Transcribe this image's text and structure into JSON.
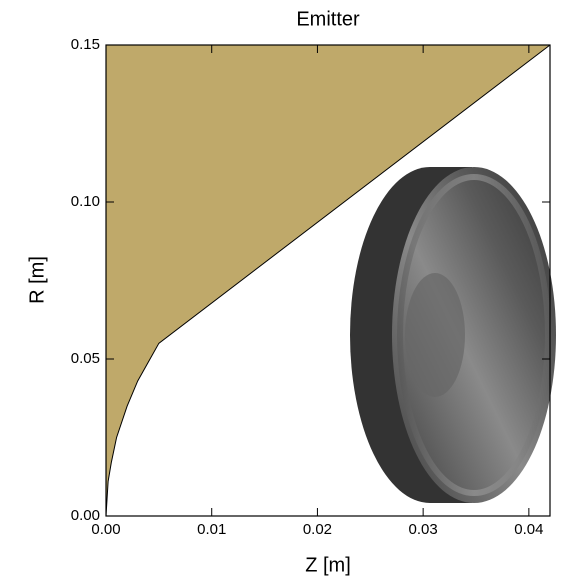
{
  "chart_data": {
    "type": "area",
    "title": "Emitter",
    "x_label": "Z [m]",
    "y_label": "R [m]",
    "x": [
      0,
      0.0002,
      0.0005,
      0.001,
      0.002,
      0.003,
      0.004,
      0.005,
      0.042
    ],
    "values": [
      0,
      0.011,
      0.017,
      0.025,
      0.035,
      0.043,
      0.049,
      0.055,
      0.15
    ],
    "color": "#bfa96a",
    "xlim": [
      0,
      0.042
    ],
    "xticks": [
      {
        "value": 0,
        "label": "0.00"
      },
      0.01,
      0.02,
      0.03,
      0.04
    ],
    "ylim": [
      0,
      0.15
    ],
    "yticks": [
      {
        "value": 0,
        "label": "0.00"
      },
      0.05,
      {
        "value": 0.1,
        "label": "0.10"
      },
      0.15
    ]
  }
}
